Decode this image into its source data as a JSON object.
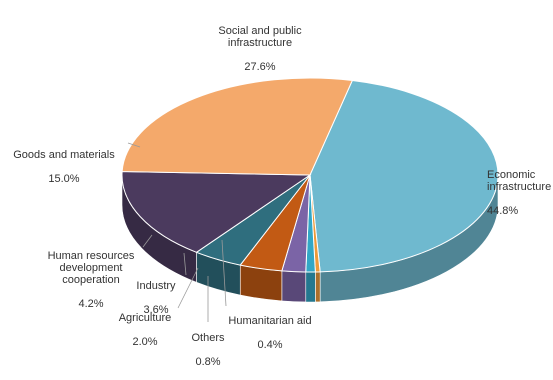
{
  "chart_data": {
    "type": "pie",
    "title": "",
    "slices": [
      {
        "label": "Economic infrastructure",
        "label_text": "Economic\ninfrastructure",
        "value": 44.8,
        "value_text": "44.8%",
        "color": "#6fb9cf"
      },
      {
        "label": "Social and public infrastructure",
        "label_text": "Social and public\ninfrastructure",
        "value": 27.6,
        "value_text": "27.6%",
        "color": "#f4a96b"
      },
      {
        "label": "Goods and materials",
        "label_text": "Goods and materials",
        "value": 15.0,
        "value_text": "15.0%",
        "color": "#4b3a5e"
      },
      {
        "label": "Human resources development cooperation",
        "label_text": "Human resources\ndevelopment\ncooperation",
        "value": 4.2,
        "value_text": "4.2%",
        "color": "#2f6e7e"
      },
      {
        "label": "Industry",
        "label_text": "Industry",
        "value": 3.6,
        "value_text": "3.6%",
        "color": "#c25a14"
      },
      {
        "label": "Agriculture",
        "label_text": "Agriculture",
        "value": 2.0,
        "value_text": "2.0%",
        "color": "#7b64a6"
      },
      {
        "label": "Others",
        "label_text": "Others",
        "value": 0.8,
        "value_text": "0.8%",
        "color": "#32a7c6"
      },
      {
        "label": "Humanitarian aid",
        "label_text": "Humanitarian aid",
        "value": 0.4,
        "value_text": "0.4%",
        "color": "#ee9a3a"
      }
    ]
  }
}
